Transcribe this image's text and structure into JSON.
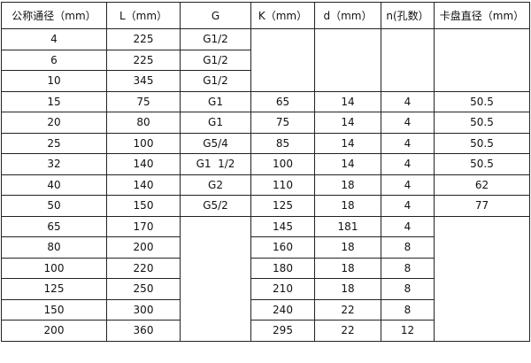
{
  "table": {
    "headers": [
      "公称通径（mm）",
      "L（mm）",
      "G",
      "K（mm）",
      "d（mm）",
      "n(孔数）",
      "卡盘直径（mm）"
    ],
    "rows": [
      [
        "4",
        "225",
        "G1/2",
        "",
        "",
        "",
        ""
      ],
      [
        "6",
        "225",
        "G1/2",
        null,
        null,
        null,
        null
      ],
      [
        "10",
        "345",
        "G1/2",
        null,
        null,
        null,
        null
      ],
      [
        "15",
        "75",
        "G1",
        "65",
        "14",
        "4",
        "50.5"
      ],
      [
        "20",
        "80",
        "G1",
        "75",
        "14",
        "4",
        "50.5"
      ],
      [
        "25",
        "100",
        "G5/4",
        "85",
        "14",
        "4",
        "50.5"
      ],
      [
        "32",
        "140",
        "G1  1/2",
        "100",
        "14",
        "4",
        "50.5"
      ],
      [
        "40",
        "140",
        "G2",
        "110",
        "18",
        "4",
        "62"
      ],
      [
        "50",
        "150",
        "G5/2",
        "125",
        "18",
        "4",
        "77"
      ],
      [
        "65",
        "170",
        "",
        "145",
        "181",
        "4",
        ""
      ],
      [
        "80",
        "200",
        null,
        "160",
        "18",
        "8",
        null
      ],
      [
        "100",
        "220",
        null,
        "180",
        "18",
        "8",
        null
      ],
      [
        "125",
        "250",
        null,
        "210",
        "18",
        "8",
        null
      ],
      [
        "150",
        "300",
        null,
        "240",
        "22",
        "8",
        null
      ],
      [
        "200",
        "360",
        null,
        "295",
        "22",
        "12",
        null
      ]
    ]
  }
}
